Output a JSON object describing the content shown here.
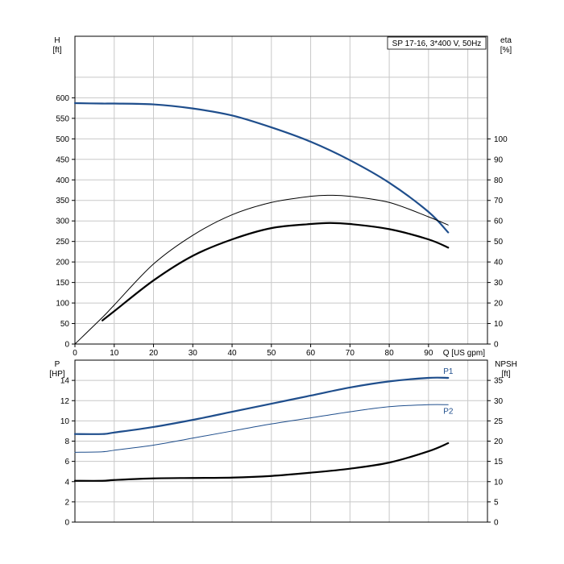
{
  "chart_data": [
    {
      "type": "line",
      "panel": "top",
      "legend": "SP 17-16, 3*400 V, 50Hz",
      "legend_placement": "top-right",
      "grid": true,
      "xlabel": "Q [US gpm]",
      "xlim": [
        0,
        105
      ],
      "xticks": [
        0,
        10,
        20,
        30,
        40,
        50,
        60,
        70,
        80,
        90
      ],
      "ylabel_left_line1": "H",
      "ylabel_left_line2": "[ft]",
      "ylim_left": [
        0,
        750
      ],
      "yticks_left": [
        0,
        50,
        100,
        150,
        200,
        250,
        300,
        350,
        400,
        450,
        500,
        550,
        600
      ],
      "ylabel_right_line1": "eta",
      "ylabel_right_line2": "[%]",
      "ylim_right": [
        0,
        150
      ],
      "yticks_right": [
        0,
        10,
        20,
        30,
        40,
        50,
        60,
        70,
        80,
        90,
        100
      ],
      "series": [
        {
          "role": "head",
          "axis": "left",
          "color": "#1f4e8c",
          "width": 2.2,
          "x": [
            0,
            7,
            10,
            20,
            30,
            40,
            50,
            60,
            70,
            80,
            90,
            95
          ],
          "y": [
            587,
            586,
            586,
            584,
            574,
            557,
            528,
            493,
            448,
            393,
            322,
            272
          ]
        },
        {
          "role": "efficiency-thin",
          "axis": "right",
          "color": "#000000",
          "width": 1,
          "x": [
            0,
            7,
            10,
            20,
            30,
            40,
            50,
            60,
            65,
            70,
            80,
            90,
            95
          ],
          "y": [
            0,
            13,
            19,
            39,
            53,
            63,
            69,
            72,
            72.5,
            72,
            69,
            62,
            58
          ]
        },
        {
          "role": "efficiency-thick",
          "axis": "right",
          "color": "#000000",
          "width": 2.2,
          "x": [
            7,
            10,
            20,
            30,
            40,
            50,
            60,
            65,
            70,
            80,
            90,
            95
          ],
          "y": [
            11.5,
            16,
            31,
            43,
            51,
            56.5,
            58.5,
            59,
            58.5,
            56,
            51,
            47
          ]
        }
      ]
    },
    {
      "type": "line",
      "panel": "bottom",
      "grid": true,
      "xlim": [
        0,
        105
      ],
      "ylabel_left_line1": "P",
      "ylabel_left_line2": "[HP]",
      "ylim_left": [
        0,
        16
      ],
      "yticks_left": [
        0,
        2,
        4,
        6,
        8,
        10,
        12,
        14
      ],
      "ylabel_right_line1": "NPSH",
      "ylabel_right_line2": "[ft]",
      "ylim_right": [
        0,
        40
      ],
      "yticks_right": [
        0,
        5,
        10,
        15,
        20,
        25,
        30,
        35
      ],
      "series": [
        {
          "name": "P1",
          "axis": "left",
          "color": "#1f4e8c",
          "width": 2.2,
          "x": [
            0,
            7,
            10,
            20,
            30,
            40,
            50,
            60,
            70,
            80,
            90,
            95
          ],
          "y": [
            8.7,
            8.7,
            8.85,
            9.4,
            10.1,
            10.9,
            11.7,
            12.5,
            13.3,
            13.9,
            14.25,
            14.25
          ]
        },
        {
          "name": "P2",
          "axis": "left",
          "color": "#1f4e8c",
          "width": 1,
          "x": [
            0,
            7,
            10,
            20,
            30,
            40,
            50,
            60,
            70,
            80,
            90,
            95
          ],
          "y": [
            6.9,
            6.95,
            7.1,
            7.6,
            8.3,
            9.0,
            9.7,
            10.3,
            10.9,
            11.4,
            11.6,
            11.6
          ]
        },
        {
          "role": "npsh",
          "axis": "right",
          "color": "#000000",
          "width": 2.2,
          "x": [
            0,
            7,
            10,
            20,
            30,
            40,
            50,
            60,
            70,
            80,
            90,
            95
          ],
          "y": [
            10.2,
            10.2,
            10.4,
            10.8,
            10.9,
            11.0,
            11.4,
            12.2,
            13.2,
            14.7,
            17.5,
            19.5
          ]
        }
      ]
    }
  ]
}
